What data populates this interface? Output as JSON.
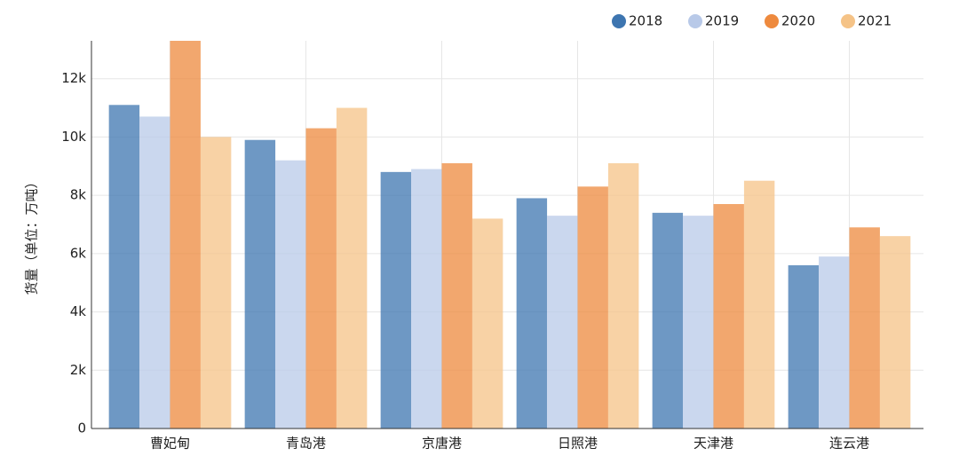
{
  "chart_data": {
    "type": "bar",
    "y_label": "货量（单位：万吨）",
    "categories": [
      "曹妃甸",
      "青岛港",
      "京唐港",
      "日照港",
      "天津港",
      "连云港"
    ],
    "series": [
      {
        "name": "2018",
        "color": "#3d75b0",
        "values": [
          11100,
          9900,
          8800,
          7900,
          7400,
          5600
        ]
      },
      {
        "name": "2019",
        "color": "#b8c9e8",
        "values": [
          10700,
          9200,
          8900,
          7300,
          7300,
          5900
        ]
      },
      {
        "name": "2020",
        "color": "#ee8a3e",
        "values": [
          13300,
          10300,
          9100,
          8300,
          7700,
          6900
        ]
      },
      {
        "name": "2021",
        "color": "#f5c387",
        "values": [
          10000,
          11000,
          7200,
          9100,
          8500,
          6600
        ]
      }
    ],
    "ylim": [
      0,
      13300
    ],
    "yticks": [
      0,
      {
        "value": 2000,
        "label": "2k"
      },
      {
        "value": 4000,
        "label": "4k"
      },
      {
        "value": 6000,
        "label": "6k"
      },
      {
        "value": 8000,
        "label": "8k"
      },
      {
        "value": 10000,
        "label": "10k"
      },
      {
        "value": 12000,
        "label": "12k"
      }
    ],
    "grid": true,
    "legend": "top-right"
  }
}
